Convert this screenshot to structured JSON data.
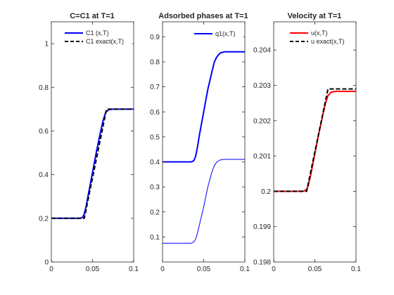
{
  "chart_data": [
    {
      "type": "line",
      "title": "C=C1 at T=1",
      "xlabel": "",
      "ylabel": "",
      "xlim": [
        0,
        0.1
      ],
      "ylim": [
        0,
        1.1
      ],
      "x_ticks": [
        0,
        0.05,
        0.1
      ],
      "x_tick_labels": [
        "0",
        "0.05",
        "0.1"
      ],
      "y_ticks": [
        0,
        0.2,
        0.4,
        0.6,
        0.8,
        1
      ],
      "y_tick_labels": [
        "0",
        "0.2",
        "0.4",
        "0.6",
        "0.8",
        "1"
      ],
      "grid": false,
      "legend_position": "top-right",
      "series": [
        {
          "name": "C1 (x,T)",
          "color": "#0000ff",
          "style": "solid",
          "x": [
            0,
            0.035,
            0.038,
            0.04,
            0.042,
            0.045,
            0.05,
            0.055,
            0.06,
            0.063,
            0.066,
            0.07,
            0.075,
            0.08,
            0.1
          ],
          "y": [
            0.2,
            0.2,
            0.205,
            0.22,
            0.25,
            0.31,
            0.41,
            0.51,
            0.6,
            0.65,
            0.685,
            0.698,
            0.7,
            0.7,
            0.7
          ]
        },
        {
          "name": "C1  exact(x,T)",
          "color": "#000000",
          "style": "dashed",
          "x": [
            0,
            0.04,
            0.067,
            0.1
          ],
          "y": [
            0.2,
            0.2,
            0.7,
            0.7
          ]
        }
      ]
    },
    {
      "type": "line",
      "title": "Adsorbed phases at T=1",
      "xlabel": "",
      "ylabel": "",
      "xlim": [
        0,
        0.1
      ],
      "ylim": [
        0,
        0.96
      ],
      "x_ticks": [
        0,
        0.05,
        0.1
      ],
      "x_tick_labels": [
        "0",
        "0.05",
        "0.1"
      ],
      "y_ticks": [
        0.1,
        0.2,
        0.3,
        0.4,
        0.5,
        0.6,
        0.7,
        0.8,
        0.9
      ],
      "y_tick_labels": [
        "0.1",
        "0.2",
        "0.3",
        "0.4",
        "0.5",
        "0.6",
        "0.7",
        "0.8",
        "0.9"
      ],
      "grid": false,
      "legend_position": "top-right",
      "series": [
        {
          "name": "q1(x,T)",
          "color": "#0000ff",
          "style": "solid-thick",
          "x": [
            0,
            0.035,
            0.038,
            0.04,
            0.042,
            0.045,
            0.05,
            0.055,
            0.06,
            0.063,
            0.066,
            0.07,
            0.075,
            0.08,
            0.09,
            0.1
          ],
          "y": [
            0.4,
            0.4,
            0.405,
            0.42,
            0.45,
            0.51,
            0.6,
            0.69,
            0.76,
            0.8,
            0.82,
            0.835,
            0.84,
            0.84,
            0.84,
            0.84
          ]
        },
        {
          "color": "#0000ff",
          "style": "solid-thin",
          "x": [
            0,
            0.035,
            0.038,
            0.04,
            0.042,
            0.045,
            0.05,
            0.055,
            0.06,
            0.063,
            0.066,
            0.07,
            0.075,
            0.08,
            0.09,
            0.1
          ],
          "y": [
            0.075,
            0.075,
            0.08,
            0.09,
            0.11,
            0.15,
            0.22,
            0.3,
            0.36,
            0.385,
            0.4,
            0.408,
            0.41,
            0.41,
            0.41,
            0.41
          ]
        }
      ]
    },
    {
      "type": "line",
      "title": "Velocity at T=1",
      "xlabel": "",
      "ylabel": "",
      "xlim": [
        0,
        0.1
      ],
      "ylim": [
        0.198,
        0.2048
      ],
      "x_ticks": [
        0,
        0.05,
        0.1
      ],
      "x_tick_labels": [
        "0",
        "0.05",
        "0.1"
      ],
      "y_ticks": [
        0.198,
        0.199,
        0.2,
        0.201,
        0.202,
        0.203,
        0.204
      ],
      "y_tick_labels": [
        "0.198",
        "0.199",
        "0.2",
        "0.201",
        "0.202",
        "0.203",
        "0.204"
      ],
      "grid": false,
      "legend_position": "top-right",
      "series": [
        {
          "name": "u(x,T)",
          "color": "#ff0000",
          "style": "solid",
          "x": [
            0,
            0.035,
            0.038,
            0.04,
            0.042,
            0.045,
            0.05,
            0.055,
            0.06,
            0.063,
            0.066,
            0.07,
            0.075,
            0.08,
            0.1
          ],
          "y": [
            0.2,
            0.2,
            0.20002,
            0.20006,
            0.20016,
            0.20046,
            0.20106,
            0.20166,
            0.2022,
            0.2025,
            0.20271,
            0.20281,
            0.20283,
            0.20283,
            0.20283
          ]
        },
        {
          "name": "u  exact(x,T)",
          "color": "#000000",
          "style": "dashed",
          "x": [
            0,
            0.04,
            0.066,
            0.1
          ],
          "y": [
            0.2,
            0.2,
            0.2029,
            0.2029
          ]
        }
      ]
    }
  ]
}
